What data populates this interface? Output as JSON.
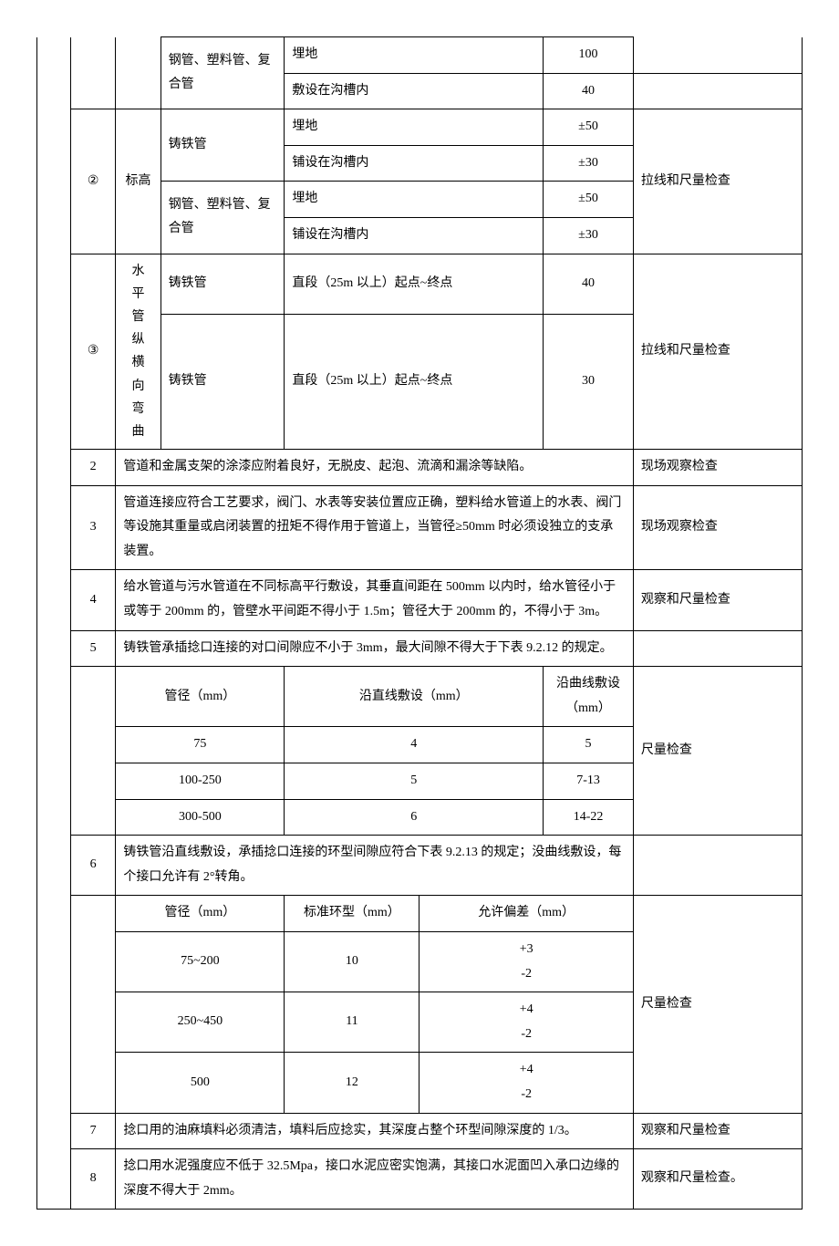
{
  "r1": {
    "pipe": "钢管、塑料管、复合管",
    "cond1": "埋地",
    "val1": "100",
    "cond2": "敷设在沟槽内",
    "val2": "40"
  },
  "r2": {
    "num": "②",
    "label": "标高",
    "pipeA": "铸铁管",
    "a1c": "埋地",
    "a1v": "±50",
    "a2c": "铺设在沟槽内",
    "a2v": "±30",
    "pipeB": "钢管、塑料管、复合管",
    "b1c": "埋地",
    "b1v": "±50",
    "b2c": "铺设在沟槽内",
    "b2v": "±30",
    "method": "拉线和尺量检查"
  },
  "r3": {
    "num": "③",
    "label": "水平管纵横向弯曲",
    "pipeA": "铸铁管",
    "condA": "直段（25m 以上）起点~终点",
    "valA": "40",
    "pipeB": "铸铁管",
    "condB": "直段（25m 以上）起点~终点",
    "valB": "30",
    "method": "拉线和尺量检查"
  },
  "item2": {
    "num": "2",
    "text": "管道和金属支架的涂漆应附着良好，无脱皮、起泡、流滴和漏涂等缺陷。",
    "method": "现场观察检查"
  },
  "item3": {
    "num": "3",
    "text": "管道连接应符合工艺要求，阀门、水表等安装位置应正确，塑料给水管道上的水表、阀门等设施其重量或启闭装置的扭矩不得作用于管道上，当管径≥50mm 时必须设独立的支承装置。",
    "method": "现场观察检查"
  },
  "item4": {
    "num": "4",
    "text": "给水管道与污水管道在不同标高平行敷设，其垂直间距在 500mm 以内时，给水管径小于或等于 200mm 的，管壁水平间距不得小于 1.5m；管径大于 200mm 的，不得小于 3m。",
    "method": "观察和尺量检查"
  },
  "item5": {
    "num": "5",
    "text": "铸铁管承插捻口连接的对口间隙应不小于 3mm，最大间隙不得大于下表 9.2.12 的规定。"
  },
  "tbl5": {
    "h1": "管径（mm）",
    "h2": "沿直线敷设（mm）",
    "h3": "沿曲线敷设（mm）",
    "r1c1": "75",
    "r1c2": "4",
    "r1c3": "5",
    "r2c1": "100-250",
    "r2c2": "5",
    "r2c3": "7-13",
    "r3c1": "300-500",
    "r3c2": "6",
    "r3c3": "14-22",
    "method": "尺量检查"
  },
  "item6": {
    "num": "6",
    "text": "铸铁管沿直线敷设，承插捻口连接的环型间隙应符合下表 9.2.13 的规定；没曲线敷设，每个接口允许有 2°转角。"
  },
  "tbl6": {
    "h1": "管径（mm）",
    "h2": "标准环型（mm）",
    "h3": "允许偏差（mm）",
    "r1c1": "75~200",
    "r1c2": "10",
    "r1c3": "+3\n-2",
    "r2c1": "250~450",
    "r2c2": "11",
    "r2c3": "+4\n-2",
    "r3c1": "500",
    "r3c2": "12",
    "r3c3": "+4\n-2",
    "method": "尺量检查"
  },
  "item7": {
    "num": "7",
    "text": "捻口用的油麻填料必须清洁，填料后应捻实，其深度占整个环型间隙深度的 1/3。",
    "method": "观察和尺量检查"
  },
  "item8": {
    "num": "8",
    "text": "捻口用水泥强度应不低于 32.5Mpa，接口水泥应密实饱满，其接口水泥面凹入承口边缘的深度不得大于 2mm。",
    "method": "观察和尺量检查。"
  }
}
